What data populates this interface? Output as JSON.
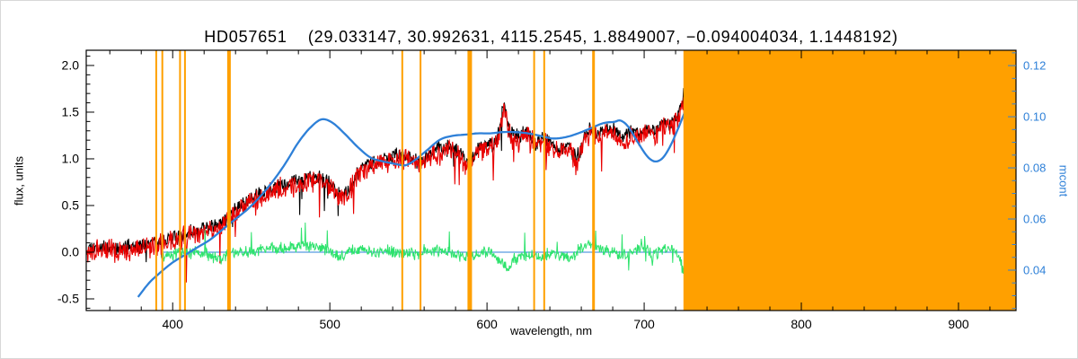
{
  "chart_data": {
    "type": "line",
    "title": "HD057651    (29.033147, 30.992631, 4115.2545, 1.8849007, −0.094004034, 1.1448192)",
    "xlabel": "wavelength, nm",
    "ylabel_left": "flux, units",
    "ylabel_right": "mcont",
    "grid": false,
    "legend": "none",
    "colors": {
      "black_spectrum": "#000000",
      "red_spectrum": "#e90000",
      "green_residual": "#2ee36d",
      "blue_continuum": "#2e80d8",
      "orange_mask": "#ffa000",
      "axis": "#000000"
    },
    "x_axis": {
      "range": [
        345,
        936.6
      ],
      "major_ticks": [
        400,
        500,
        600,
        700,
        800,
        900
      ],
      "major_tick_labels": [
        "400",
        "500",
        "600",
        "700",
        "800",
        "900"
      ],
      "minor_step": 20
    },
    "y_left": {
      "range": [
        -0.625,
        2.163
      ],
      "major_ticks": [
        2.0,
        1.5,
        1.0,
        0.5,
        0.0,
        -0.5
      ],
      "major_tick_labels": [
        "2.0",
        "1.5",
        "1.0",
        "0.5",
        "0.0",
        "-0.5"
      ],
      "minor_step": 0.1
    },
    "y_right": {
      "range": [
        0.0242,
        0.126
      ],
      "major_ticks": [
        0.12,
        0.1,
        0.08,
        0.06,
        0.04
      ],
      "major_tick_labels": [
        "0.12",
        "0.10",
        "0.08",
        "0.06",
        "0.04"
      ],
      "minor_step": 0.005
    },
    "orange_lines": {
      "wavelengths": [
        389.5,
        393.4,
        404.7,
        407.8,
        435.8,
        546.1,
        557.7,
        589.0,
        630.0,
        636.4,
        667.8
      ],
      "widths": [
        2,
        2,
        2,
        2,
        4,
        2,
        2,
        5,
        2,
        2,
        3
      ]
    },
    "orange_band": [
      725,
      936.6
    ],
    "zero_line": {
      "value": 0.0,
      "x_start": 393,
      "x_end": 725
    },
    "series": [
      {
        "name": "observed-spectrum",
        "color": "#000000",
        "width": 1.1,
        "noise": 0.07,
        "seed": 11,
        "step": 0.35,
        "spikes": "down",
        "anchors_x": [
          345,
          352,
          359,
          366,
          373,
          380,
          387,
          394,
          400,
          406,
          412,
          418,
          424,
          430,
          436,
          442,
          448,
          454,
          460,
          466,
          472,
          478,
          484,
          490,
          496,
          502,
          508,
          514,
          520,
          526,
          532,
          538,
          544,
          550,
          557,
          563,
          570,
          577,
          583,
          588,
          594,
          600,
          606,
          611,
          614,
          620,
          626,
          631,
          636,
          641,
          646,
          651,
          657,
          662,
          667,
          672,
          677,
          682,
          687,
          692,
          697,
          702,
          707,
          712,
          717,
          721,
          724,
          726,
          727
        ],
        "anchors_y": [
          0.05,
          0.05,
          0.06,
          0.05,
          0.06,
          0.07,
          0.09,
          0.12,
          0.15,
          0.18,
          0.21,
          0.24,
          0.27,
          0.3,
          0.38,
          0.5,
          0.56,
          0.6,
          0.65,
          0.7,
          0.73,
          0.76,
          0.79,
          0.81,
          0.8,
          0.7,
          0.6,
          0.72,
          0.9,
          0.95,
          0.99,
          1.02,
          1.05,
          1.04,
          0.95,
          1.06,
          1.1,
          1.12,
          1.05,
          0.95,
          1.1,
          1.14,
          1.18,
          1.6,
          1.3,
          1.22,
          1.3,
          1.15,
          1.22,
          1.15,
          1.1,
          1.18,
          0.98,
          1.25,
          1.32,
          1.28,
          1.33,
          1.3,
          1.2,
          1.3,
          1.25,
          1.35,
          1.3,
          1.4,
          1.38,
          1.45,
          1.6,
          1.75,
          1.65
        ]
      },
      {
        "name": "fitted-spectrum",
        "color": "#e90000",
        "width": 1.1,
        "noise": 0.1,
        "seed": 77,
        "step": 0.35,
        "spikes": "down",
        "base": "observed-spectrum",
        "offset": -0.04
      },
      {
        "name": "residuals",
        "color": "#2ee36d",
        "width": 1.0,
        "noise": 0.055,
        "seed": 23,
        "step": 0.35,
        "spikes": "both",
        "anchors_x": [
          393,
          399,
          405,
          411,
          417,
          423,
          429,
          435,
          441,
          447,
          453,
          459,
          465,
          471,
          477,
          483,
          489,
          495,
          501,
          507,
          513,
          519,
          525,
          531,
          537,
          543,
          549,
          555,
          561,
          567,
          573,
          579,
          585,
          591,
          597,
          603,
          609,
          613,
          617,
          623,
          629,
          635,
          641,
          647,
          653,
          659,
          665,
          670,
          675,
          680,
          685,
          690,
          695,
          699,
          702,
          705,
          710,
          715,
          719,
          722,
          725,
          727
        ],
        "anchors_y": [
          -0.05,
          -0.02,
          0.0,
          -0.02,
          0.0,
          -0.03,
          -0.07,
          -0.02,
          0.01,
          0.0,
          0.02,
          0.03,
          0.05,
          0.04,
          0.06,
          0.07,
          0.06,
          0.04,
          0.0,
          -0.05,
          0.01,
          0.03,
          0.01,
          0.0,
          0.02,
          0.01,
          0.0,
          -0.02,
          0.02,
          0.02,
          0.0,
          -0.02,
          -0.05,
          -0.03,
          0.01,
          -0.02,
          -0.1,
          -0.18,
          -0.08,
          -0.03,
          -0.02,
          -0.04,
          -0.01,
          -0.04,
          -0.08,
          0.03,
          0.09,
          0.05,
          0.02,
          0.0,
          -0.04,
          -0.01,
          0.03,
          0.09,
          0.02,
          -0.03,
          0.02,
          0.05,
          0.02,
          -0.06,
          -0.2,
          -0.32
        ]
      },
      {
        "name": "continuum-mcont",
        "color": "#2e80d8",
        "width": 2.3,
        "smooth": true,
        "axis": "right",
        "anchors_x": [
          378,
          385,
          392,
          400,
          408,
          416,
          424,
          432,
          440,
          448,
          456,
          464,
          472,
          480,
          488,
          495,
          502,
          510,
          518,
          526,
          534,
          542,
          548,
          554,
          562,
          570,
          578,
          586,
          594,
          602,
          610,
          618,
          626,
          634,
          642,
          650,
          658,
          666,
          674,
          681,
          685,
          690,
          696,
          702,
          707,
          712,
          717,
          722,
          726,
          727
        ],
        "anchors_y": [
          0.0295,
          0.035,
          0.039,
          0.043,
          0.046,
          0.049,
          0.052,
          0.056,
          0.06,
          0.064,
          0.069,
          0.075,
          0.082,
          0.09,
          0.096,
          0.099,
          0.0975,
          0.093,
          0.088,
          0.084,
          0.0825,
          0.0815,
          0.081,
          0.083,
          0.087,
          0.091,
          0.0925,
          0.093,
          0.0935,
          0.0935,
          0.094,
          0.094,
          0.0935,
          0.0925,
          0.0915,
          0.092,
          0.0935,
          0.0955,
          0.0975,
          0.098,
          0.0985,
          0.096,
          0.09,
          0.0845,
          0.0825,
          0.084,
          0.089,
          0.096,
          0.102,
          0.103
        ]
      }
    ]
  }
}
